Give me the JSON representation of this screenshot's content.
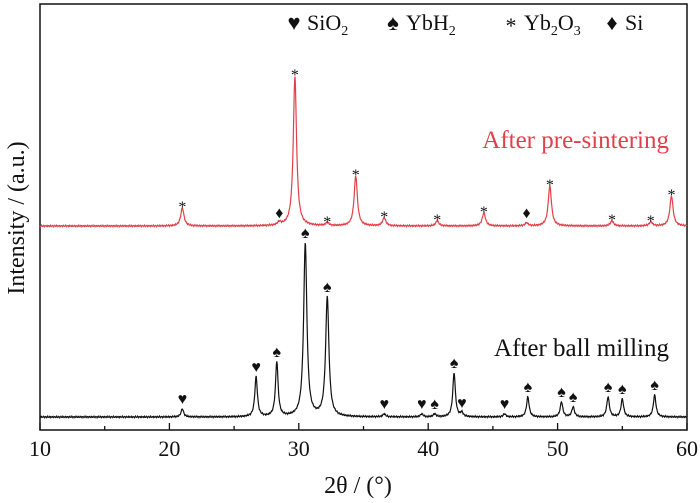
{
  "chart_data": {
    "type": "line",
    "xlabel": "2θ / (°)",
    "ylabel": "Intensity / (a.u.)",
    "xlim": [
      10,
      60
    ],
    "xticks": [
      10,
      20,
      30,
      40,
      50,
      60
    ],
    "grid": false,
    "legend": {
      "placement": "top",
      "entries": [
        {
          "symbol": "♥",
          "label": "SiO",
          "sub": "2",
          "tail": ""
        },
        {
          "symbol": "♠",
          "label": "YbH",
          "sub": "2",
          "tail": ""
        },
        {
          "symbol": "*",
          "label": "Yb",
          "sub": "2",
          "tail": "O",
          "sub2": "3"
        },
        {
          "symbol": "♦",
          "label": "Si",
          "sub": "",
          "tail": ""
        }
      ]
    },
    "series": [
      {
        "name": "After pre-sintering",
        "color": "#e0404a",
        "baseline": 226,
        "peaks": [
          {
            "x": 21.0,
            "h": 18,
            "w": 0.15,
            "marker": "*"
          },
          {
            "x": 28.5,
            "h": 3,
            "w": 0.15,
            "marker": "♦"
          },
          {
            "x": 29.7,
            "h": 150,
            "w": 0.15,
            "marker": "*"
          },
          {
            "x": 32.2,
            "h": 3,
            "w": 0.15,
            "marker": "*"
          },
          {
            "x": 34.4,
            "h": 50,
            "w": 0.15,
            "marker": "*"
          },
          {
            "x": 36.6,
            "h": 8,
            "w": 0.15,
            "marker": "*"
          },
          {
            "x": 40.7,
            "h": 5,
            "w": 0.15,
            "marker": "*"
          },
          {
            "x": 44.3,
            "h": 13,
            "w": 0.15,
            "marker": "*"
          },
          {
            "x": 47.6,
            "h": 3,
            "w": 0.15,
            "marker": "♦"
          },
          {
            "x": 49.4,
            "h": 40,
            "w": 0.15,
            "marker": "*"
          },
          {
            "x": 54.2,
            "h": 5,
            "w": 0.15,
            "marker": "*"
          },
          {
            "x": 57.2,
            "h": 4,
            "w": 0.15,
            "marker": "*"
          },
          {
            "x": 58.8,
            "h": 30,
            "w": 0.15,
            "marker": "*"
          }
        ]
      },
      {
        "name": "After ball milling",
        "color": "#111111",
        "baseline": 417,
        "peaks": [
          {
            "x": 21.0,
            "h": 8,
            "w": 0.12,
            "marker": "♥"
          },
          {
            "x": 26.7,
            "h": 40,
            "w": 0.12,
            "marker": "♥"
          },
          {
            "x": 28.3,
            "h": 55,
            "w": 0.12,
            "marker": "♠"
          },
          {
            "x": 30.5,
            "h": 174,
            "w": 0.15,
            "marker": "♠"
          },
          {
            "x": 32.2,
            "h": 120,
            "w": 0.15,
            "marker": "♠"
          },
          {
            "x": 36.6,
            "h": 3,
            "w": 0.12,
            "marker": "♥"
          },
          {
            "x": 39.5,
            "h": 3,
            "w": 0.12,
            "marker": "♥"
          },
          {
            "x": 40.5,
            "h": 3,
            "w": 0.12,
            "marker": "♠"
          },
          {
            "x": 42.0,
            "h": 44,
            "w": 0.12,
            "marker": "♠"
          },
          {
            "x": 42.6,
            "h": 4,
            "w": 0.12,
            "marker": "♥"
          },
          {
            "x": 45.9,
            "h": 3,
            "w": 0.12,
            "marker": "♥"
          },
          {
            "x": 47.7,
            "h": 20,
            "w": 0.12,
            "marker": "♠"
          },
          {
            "x": 50.3,
            "h": 15,
            "w": 0.12,
            "marker": "♠"
          },
          {
            "x": 51.2,
            "h": 10,
            "w": 0.12,
            "marker": "♠"
          },
          {
            "x": 53.9,
            "h": 20,
            "w": 0.12,
            "marker": "♠"
          },
          {
            "x": 55.0,
            "h": 18,
            "w": 0.12,
            "marker": "♠"
          },
          {
            "x": 57.5,
            "h": 22,
            "w": 0.12,
            "marker": "♠"
          }
        ]
      }
    ]
  }
}
